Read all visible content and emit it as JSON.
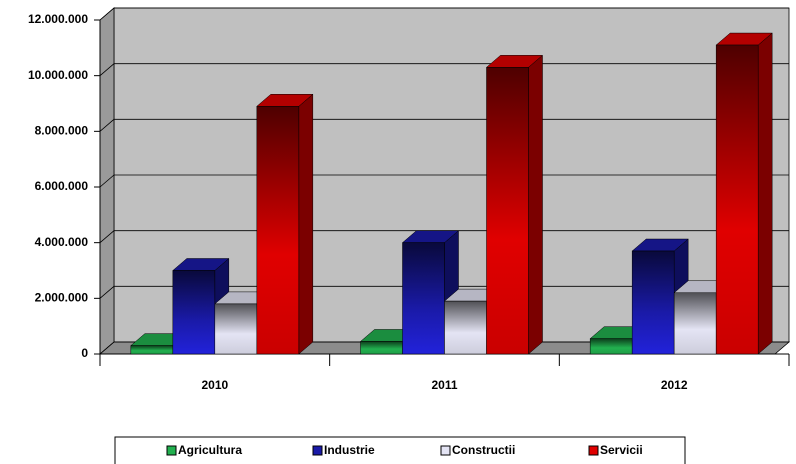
{
  "chart_data": {
    "type": "bar3d",
    "categories": [
      "2010",
      "2011",
      "2012"
    ],
    "series": [
      {
        "name": "Agricultura",
        "color": "#22b04f",
        "values": [
          300000,
          450000,
          550000
        ]
      },
      {
        "name": "Industrie",
        "color": "#1a1aa8",
        "values": [
          3000000,
          4000000,
          3700000
        ]
      },
      {
        "name": "Constructii",
        "color": "#e4e4f4",
        "values": [
          1800000,
          1900000,
          2200000
        ]
      },
      {
        "name": "Servicii",
        "color": "#e00000",
        "values": [
          8900000,
          10300000,
          11100000
        ]
      }
    ],
    "ylim": [
      0,
      12000000
    ],
    "yticks": [
      0,
      {
        "value": 2000000,
        "label": "2.000.000"
      },
      {
        "value": 4000000,
        "label": "4.000.000"
      },
      {
        "value": 6000000,
        "label": "6.000.000"
      },
      {
        "value": 8000000,
        "label": "8.000.000"
      },
      {
        "value": 10000000,
        "label": "10.000.000"
      },
      {
        "value": 12000000,
        "label": "12.000.000"
      }
    ],
    "grid": true
  }
}
